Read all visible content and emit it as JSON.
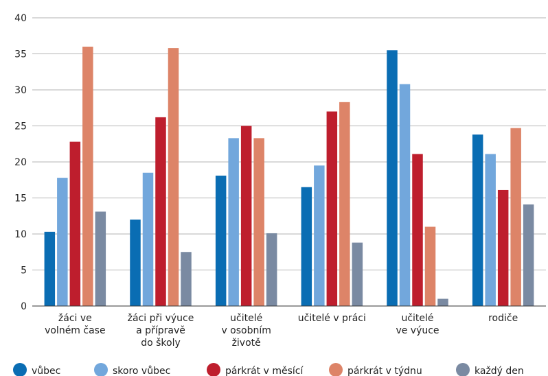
{
  "chart_data": {
    "type": "bar",
    "title": "",
    "xlabel": "",
    "ylabel": "",
    "ylim": [
      0,
      40
    ],
    "yticks": [
      0,
      5,
      10,
      15,
      20,
      25,
      30,
      35,
      40
    ],
    "grid": "horizontal",
    "legend_position": "bottom",
    "categories": [
      [
        "žáci ve",
        "volném čase"
      ],
      [
        "žáci při výuce",
        "a přípravě",
        "do školy"
      ],
      [
        "učitelé",
        "v osobním",
        "životě"
      ],
      [
        "učitelé v práci"
      ],
      [
        "učitelé",
        "ve výuce"
      ],
      [
        "rodiče"
      ]
    ],
    "series": [
      {
        "name": "vůbec",
        "color": "#0a6db3",
        "values": [
          10.3,
          12.0,
          18.1,
          16.5,
          35.5,
          23.8
        ]
      },
      {
        "name": "skoro vůbec",
        "color": "#72a7dc",
        "values": [
          17.8,
          18.5,
          23.3,
          19.5,
          30.8,
          21.1
        ]
      },
      {
        "name": "párkrát v měsící",
        "color": "#be1e2d",
        "values": [
          22.8,
          26.2,
          25.0,
          27.0,
          21.1,
          16.1
        ]
      },
      {
        "name": "párkrát v týdnu",
        "color": "#dd8468",
        "values": [
          36.0,
          35.8,
          23.3,
          28.3,
          11.0,
          24.7
        ]
      },
      {
        "name": "každý den",
        "color": "#7a8aa2",
        "values": [
          13.1,
          7.5,
          10.1,
          8.8,
          1.0,
          14.1
        ]
      }
    ]
  }
}
